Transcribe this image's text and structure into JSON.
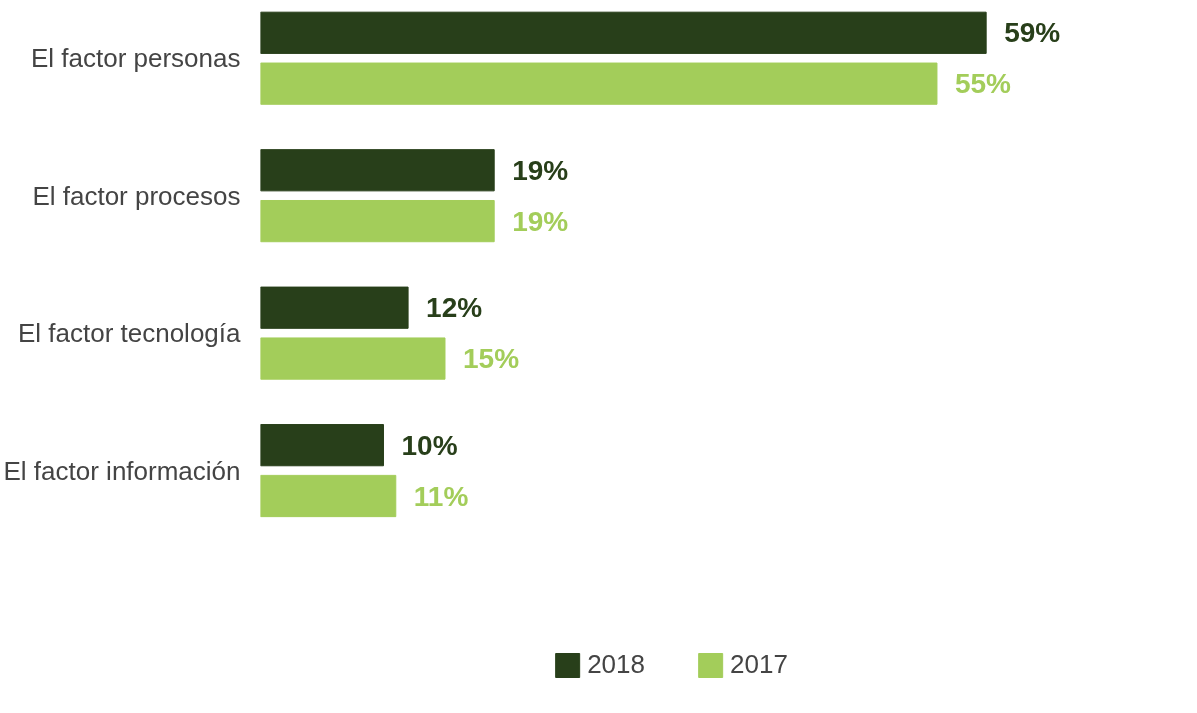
{
  "chart_data": {
    "type": "bar",
    "orientation": "horizontal",
    "categories": [
      "El factor personas",
      "El factor procesos",
      "El factor tecnología",
      "El factor información"
    ],
    "series": [
      {
        "name": "2018",
        "color": "#283f1a",
        "values": [
          59,
          19,
          12,
          10
        ],
        "value_labels": [
          "59%",
          "19%",
          "12%",
          "10%"
        ]
      },
      {
        "name": "2017",
        "color": "#a3cd5a",
        "values": [
          55,
          19,
          15,
          11
        ],
        "value_labels": [
          "55%",
          "19%",
          "15%",
          "11%"
        ]
      }
    ],
    "legend": "bottom",
    "grid": false
  }
}
